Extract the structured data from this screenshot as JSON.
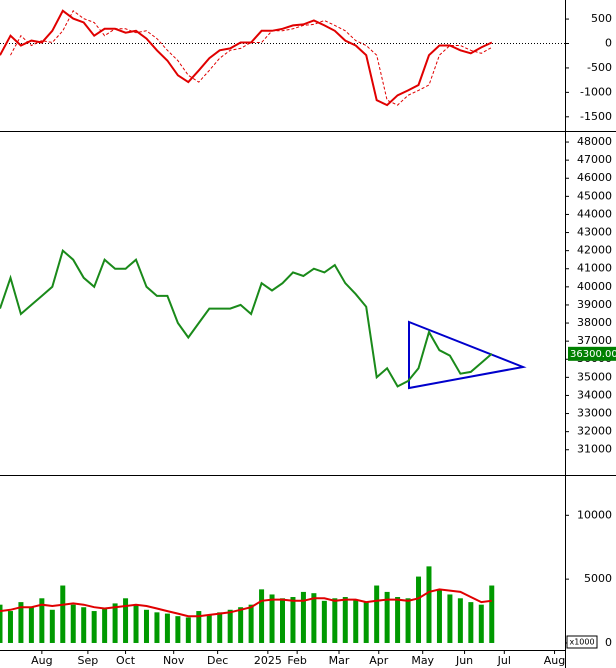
{
  "chart_data": [
    {
      "type": "line",
      "x": [
        0,
        5,
        10,
        15,
        20,
        25,
        30,
        35,
        40,
        45,
        50,
        55,
        60,
        65,
        70,
        75,
        80,
        85,
        90,
        95,
        100,
        105,
        110,
        115,
        120,
        125,
        130,
        135,
        140,
        145,
        150,
        155,
        160,
        165,
        170,
        175,
        180,
        185,
        190,
        195,
        200,
        205,
        210,
        215,
        220,
        225,
        230,
        235
      ],
      "series": [
        {
          "color": "#e00000",
          "values": [
            -240,
            160,
            -40,
            60,
            20,
            260,
            670,
            510,
            430,
            160,
            300,
            300,
            220,
            260,
            100,
            -140,
            -350,
            -650,
            -790,
            -550,
            -300,
            -140,
            -100,
            20,
            20,
            260,
            260,
            300,
            370,
            390,
            470,
            370,
            260,
            60,
            -40,
            -240,
            -1160,
            -1260,
            -1060,
            -960,
            -850,
            -240,
            -40,
            -40,
            -140,
            -200,
            -80,
            20
          ]
        },
        {
          "color": "#e00000",
          "dashed": true,
          "values": [
            null,
            -240,
            160,
            -40,
            60,
            20,
            260,
            670,
            510,
            430,
            160,
            300,
            300,
            220,
            260,
            100,
            -140,
            -350,
            -650,
            -790,
            -550,
            -300,
            -140,
            -100,
            20,
            20,
            260,
            260,
            300,
            370,
            390,
            470,
            370,
            260,
            60,
            -40,
            -240,
            -1160,
            -1260,
            -1060,
            -960,
            -850,
            -240,
            -40,
            -40,
            -140,
            -200,
            -80
          ]
        }
      ],
      "xlim": [
        0,
        270
      ],
      "ylim": [
        -1770,
        890
      ],
      "yticks": [
        500,
        0,
        -500,
        -1000,
        -1500
      ],
      "zero_line": true
    },
    {
      "type": "line",
      "x": [
        0,
        5,
        10,
        15,
        20,
        25,
        30,
        35,
        40,
        45,
        50,
        55,
        60,
        65,
        70,
        75,
        80,
        85,
        90,
        95,
        100,
        105,
        110,
        115,
        120,
        125,
        130,
        135,
        140,
        145,
        150,
        155,
        160,
        165,
        170,
        175,
        180,
        185,
        190,
        195,
        200,
        205,
        210,
        215,
        220,
        225,
        230,
        235
      ],
      "series": [
        {
          "color": "#1a8a1a",
          "values": [
            38800,
            40500,
            38500,
            39000,
            39500,
            40000,
            42000,
            41500,
            40500,
            40000,
            41500,
            41000,
            41000,
            41500,
            40000,
            39500,
            39500,
            38000,
            37200,
            38000,
            38800,
            38800,
            38800,
            39000,
            38500,
            40200,
            39800,
            40200,
            40800,
            40600,
            41000,
            40800,
            41200,
            40200,
            39600,
            38900,
            35000,
            35500,
            34500,
            34800,
            35500,
            37500,
            36500,
            36200,
            35200,
            35300,
            35800,
            36300
          ]
        }
      ],
      "last_price_label": "36300.00",
      "xlim": [
        0,
        270
      ],
      "ylim": [
        29660,
        48500
      ],
      "yticks": [
        31000,
        32000,
        33000,
        34000,
        35000,
        36000,
        37000,
        38000,
        39000,
        40000,
        41000,
        42000,
        43000,
        44000,
        45000,
        46000,
        47000,
        48000
      ]
    },
    {
      "type": "bar",
      "x": [
        0,
        5,
        10,
        15,
        20,
        25,
        30,
        35,
        40,
        45,
        50,
        55,
        60,
        65,
        70,
        75,
        80,
        85,
        90,
        95,
        100,
        105,
        110,
        115,
        120,
        125,
        130,
        135,
        140,
        145,
        150,
        155,
        160,
        165,
        170,
        175,
        180,
        185,
        190,
        195,
        200,
        205,
        210,
        215,
        220,
        225,
        230,
        235
      ],
      "series": [
        {
          "type": "bar",
          "color": "#009900",
          "values": [
            3000,
            2500,
            3200,
            2800,
            3500,
            2600,
            4500,
            3000,
            2800,
            2500,
            2700,
            3100,
            3500,
            3000,
            2600,
            2400,
            2300,
            2100,
            2000,
            2500,
            2200,
            2400,
            2600,
            2800,
            3000,
            4200,
            3800,
            3500,
            3600,
            4000,
            3900,
            3300,
            3500,
            3600,
            3400,
            3200,
            4500,
            4000,
            3600,
            3500,
            5200,
            6000,
            4200,
            3800,
            3500,
            3200,
            3000,
            4500
          ]
        },
        {
          "type": "line",
          "color": "#e00000",
          "values": [
            2500,
            2600,
            2800,
            2800,
            3000,
            2900,
            3000,
            3100,
            3000,
            2800,
            2700,
            2800,
            2900,
            3000,
            2900,
            2700,
            2500,
            2300,
            2100,
            2100,
            2200,
            2300,
            2400,
            2600,
            2800,
            3300,
            3400,
            3400,
            3300,
            3300,
            3500,
            3500,
            3300,
            3400,
            3400,
            3200,
            3300,
            3400,
            3400,
            3300,
            3500,
            4000,
            4200,
            4100,
            4000,
            3600,
            3200,
            3300
          ]
        }
      ],
      "unit_label": "x1000",
      "xlim": [
        0,
        270
      ],
      "ylim": [
        -550,
        13000
      ],
      "yticks": [
        0,
        5000,
        10000
      ],
      "xticks": [
        {
          "value": 20,
          "label": "Aug"
        },
        {
          "value": 42,
          "label": "Sep"
        },
        {
          "value": 60,
          "label": "Oct"
        },
        {
          "value": 83,
          "label": "Nov"
        },
        {
          "value": 104,
          "label": "Dec"
        },
        {
          "value": 128,
          "label": "2025"
        },
        {
          "value": 142,
          "label": "Feb"
        },
        {
          "value": 162,
          "label": "Mar"
        },
        {
          "value": 181,
          "label": "Apr"
        },
        {
          "value": 202,
          "label": "May"
        },
        {
          "value": 222,
          "label": "Jun"
        },
        {
          "value": 241,
          "label": "Jul"
        },
        {
          "value": 265,
          "label": "Aug"
        }
      ]
    }
  ]
}
